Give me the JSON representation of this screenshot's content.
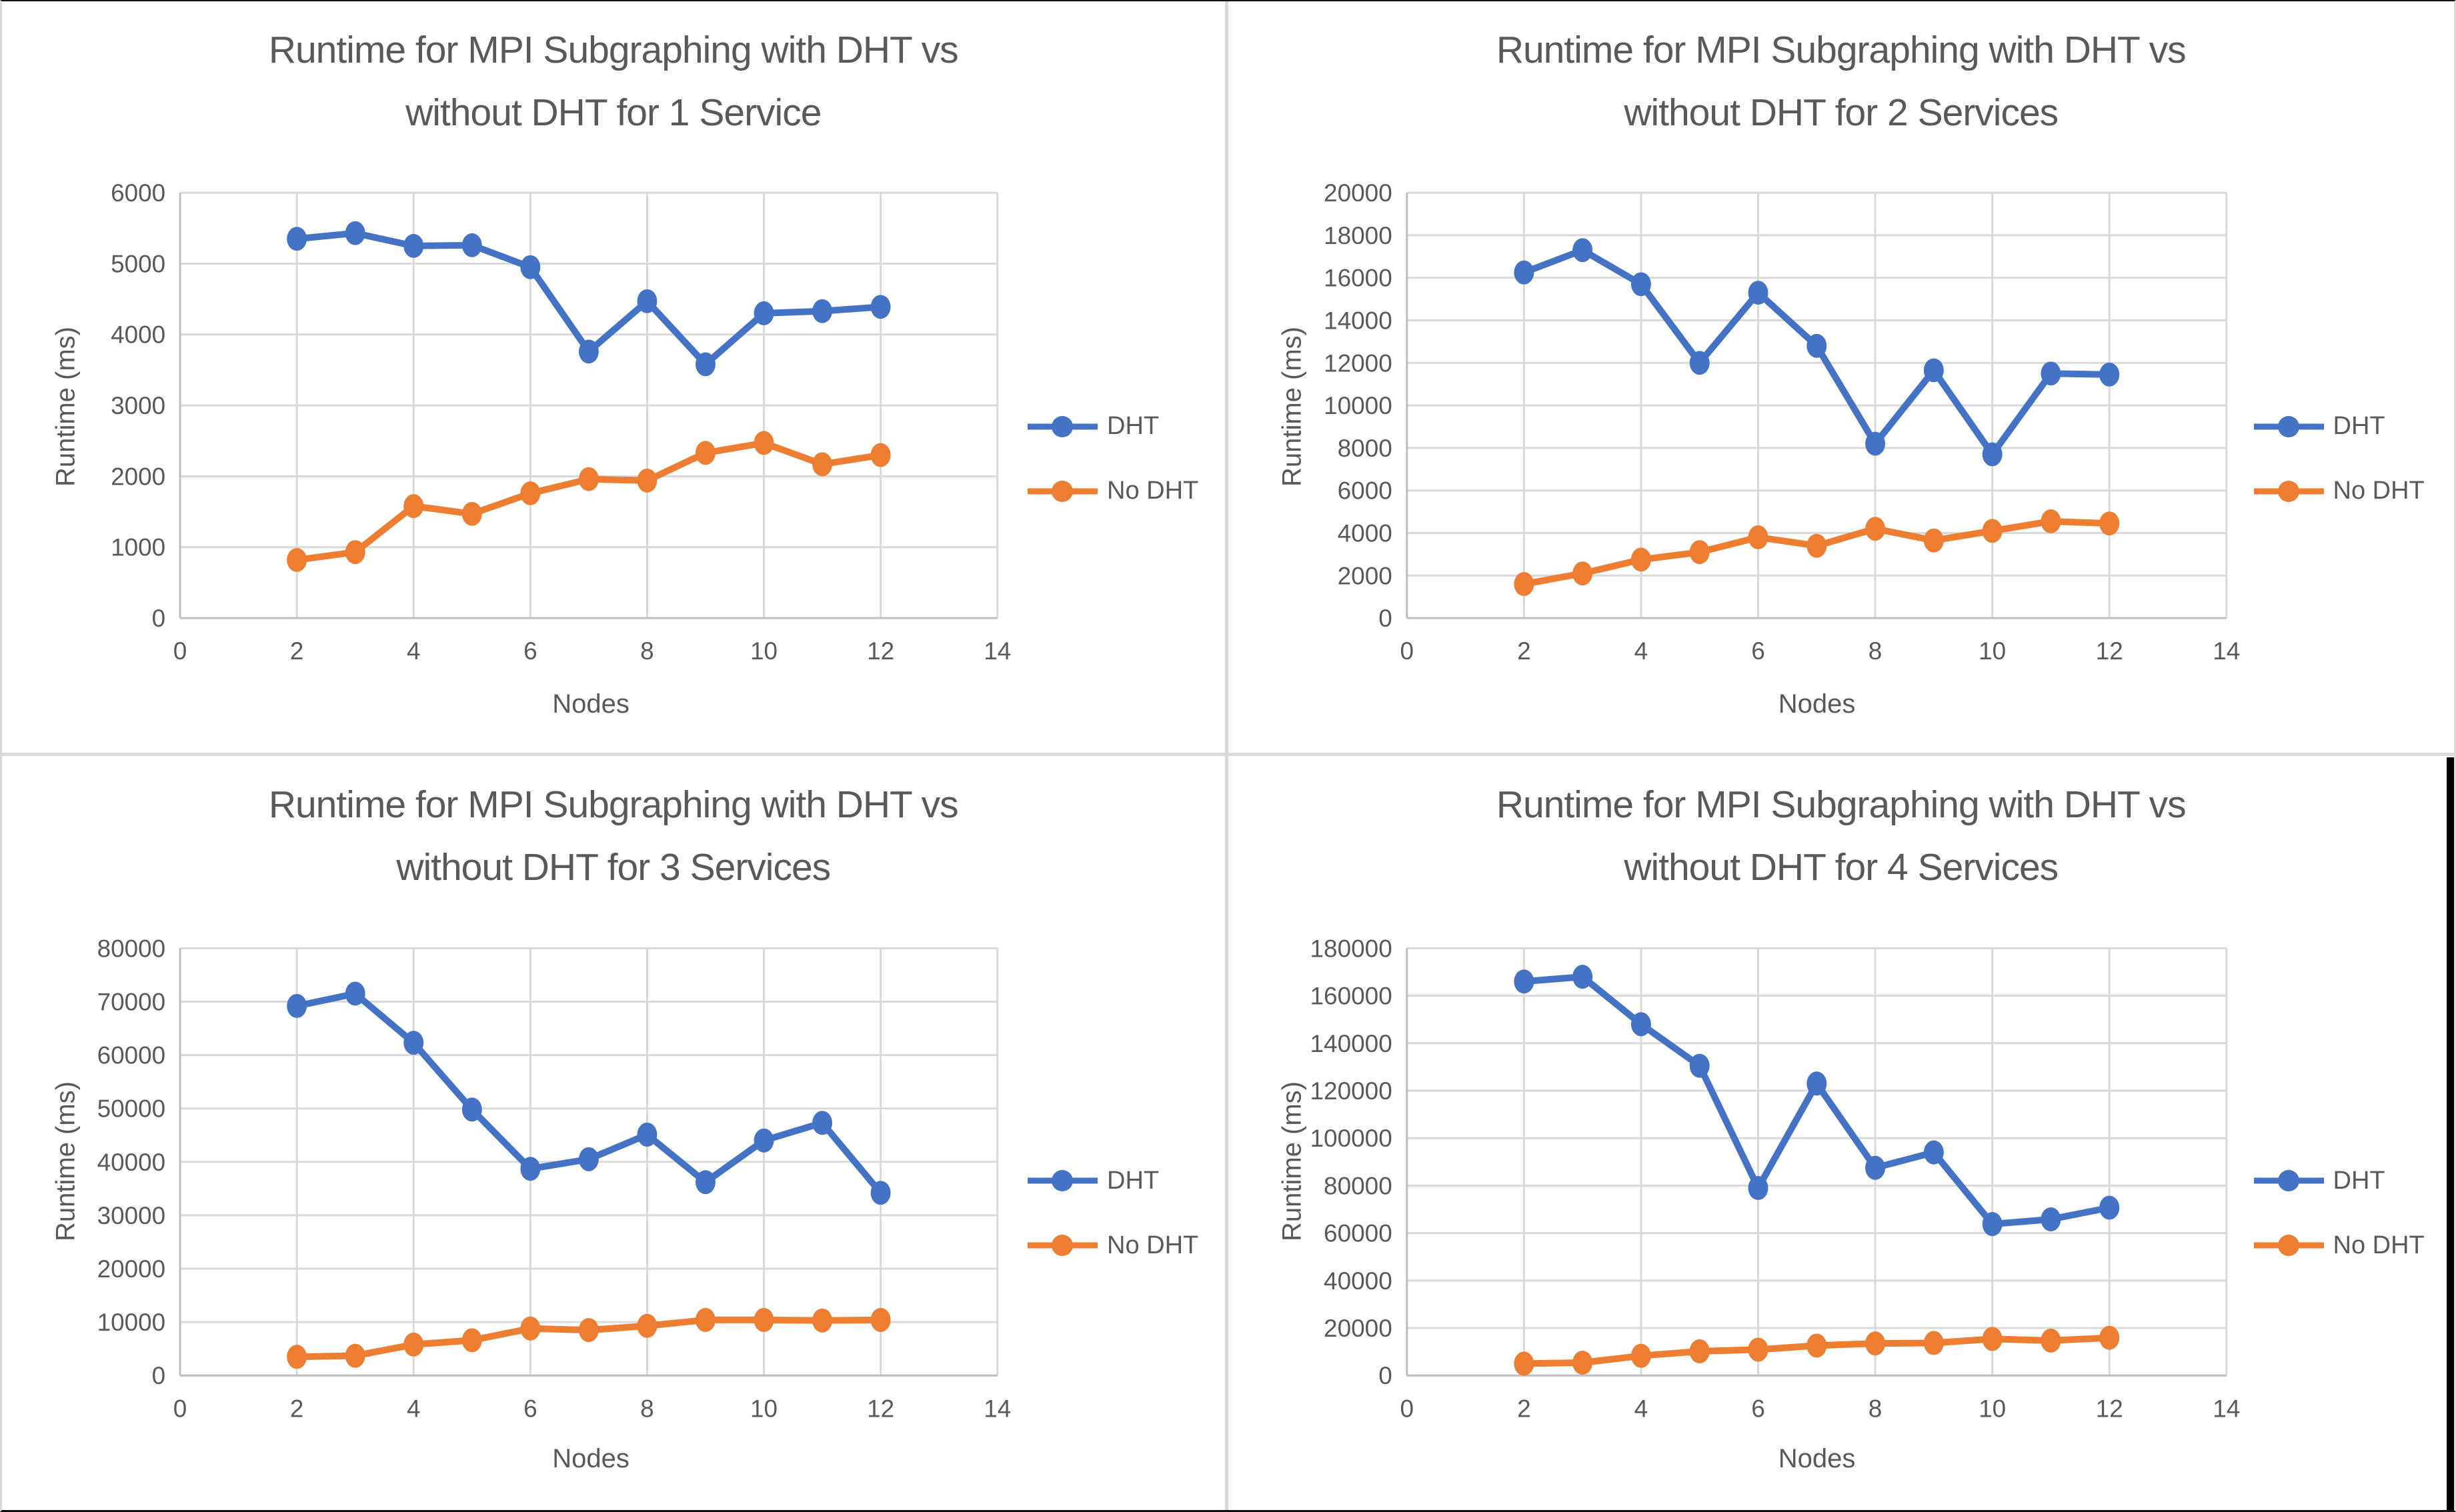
{
  "colors": {
    "dht_blue": "#4472C4",
    "no_dht_orange": "#ED7D31",
    "text_gray": "#595959",
    "gridline": "#D9D9D9",
    "axis_line": "#BFBFBF",
    "background": "#FFFFFF"
  },
  "chart_data": [
    {
      "type": "line",
      "title_line1": "Runtime for MPI Subgraphing with DHT vs",
      "title_line2": "without DHT for 1 Service",
      "xlabel": "Nodes",
      "ylabel": "Runtime (ms)",
      "xlim": [
        0,
        14
      ],
      "x_ticks": [
        0,
        2,
        4,
        6,
        8,
        10,
        12,
        14
      ],
      "ylim": [
        0,
        6000
      ],
      "y_step": 1000,
      "grid": true,
      "legend_position": "right",
      "x": [
        2,
        3,
        4,
        5,
        6,
        7,
        8,
        9,
        10,
        11,
        12
      ],
      "series": [
        {
          "name": "DHT",
          "color": "#4472C4",
          "values": [
            5350,
            5430,
            5250,
            5260,
            4950,
            3760,
            4470,
            3580,
            4300,
            4330,
            4390
          ]
        },
        {
          "name": "No DHT",
          "color": "#ED7D31",
          "values": [
            820,
            930,
            1580,
            1470,
            1760,
            1960,
            1940,
            2330,
            2470,
            2170,
            2300
          ]
        }
      ]
    },
    {
      "type": "line",
      "title_line1": "Runtime for MPI Subgraphing with DHT vs",
      "title_line2": "without DHT for 2 Services",
      "xlabel": "Nodes",
      "ylabel": "Runtime (ms)",
      "xlim": [
        0,
        14
      ],
      "x_ticks": [
        0,
        2,
        4,
        6,
        8,
        10,
        12,
        14
      ],
      "ylim": [
        0,
        20000
      ],
      "y_step": 2000,
      "grid": true,
      "legend_position": "right",
      "x": [
        2,
        3,
        4,
        5,
        6,
        7,
        8,
        9,
        10,
        11,
        12
      ],
      "series": [
        {
          "name": "DHT",
          "color": "#4472C4",
          "values": [
            16250,
            17300,
            15700,
            12000,
            15300,
            12800,
            8200,
            11650,
            7700,
            11500,
            11450
          ]
        },
        {
          "name": "No DHT",
          "color": "#ED7D31",
          "values": [
            1600,
            2100,
            2750,
            3100,
            3800,
            3400,
            4200,
            3650,
            4100,
            4550,
            4450
          ]
        }
      ]
    },
    {
      "type": "line",
      "title_line1": "Runtime for MPI Subgraphing with DHT vs",
      "title_line2": "without DHT for 3 Services",
      "xlabel": "Nodes",
      "ylabel": "Runtime (ms)",
      "xlim": [
        0,
        14
      ],
      "x_ticks": [
        0,
        2,
        4,
        6,
        8,
        10,
        12,
        14
      ],
      "ylim": [
        0,
        80000
      ],
      "y_step": 10000,
      "grid": true,
      "legend_position": "right",
      "x": [
        2,
        3,
        4,
        5,
        6,
        7,
        8,
        9,
        10,
        11,
        12
      ],
      "series": [
        {
          "name": "DHT",
          "color": "#4472C4",
          "values": [
            69200,
            71500,
            62300,
            49800,
            38700,
            40500,
            45100,
            36200,
            44000,
            47300,
            34200
          ]
        },
        {
          "name": "No DHT",
          "color": "#ED7D31",
          "values": [
            3500,
            3700,
            5800,
            6600,
            8800,
            8500,
            9300,
            10400,
            10400,
            10300,
            10400
          ]
        }
      ]
    },
    {
      "type": "line",
      "title_line1": "Runtime for MPI Subgraphing with DHT vs",
      "title_line2": "without DHT for 4 Services",
      "xlabel": "Nodes",
      "ylabel": "Runtime (ms)",
      "xlim": [
        0,
        14
      ],
      "x_ticks": [
        0,
        2,
        4,
        6,
        8,
        10,
        12,
        14
      ],
      "ylim": [
        0,
        180000
      ],
      "y_step": 20000,
      "grid": true,
      "legend_position": "right",
      "x": [
        2,
        3,
        4,
        5,
        6,
        7,
        8,
        9,
        10,
        11,
        12
      ],
      "series": [
        {
          "name": "DHT",
          "color": "#4472C4",
          "values": [
            166000,
            168000,
            148000,
            130500,
            79000,
            123000,
            87500,
            94000,
            63800,
            65800,
            70700
          ]
        },
        {
          "name": "No DHT",
          "color": "#ED7D31",
          "values": [
            5000,
            5400,
            8300,
            10200,
            10900,
            12600,
            13500,
            13700,
            15400,
            14700,
            15900
          ]
        }
      ]
    }
  ]
}
